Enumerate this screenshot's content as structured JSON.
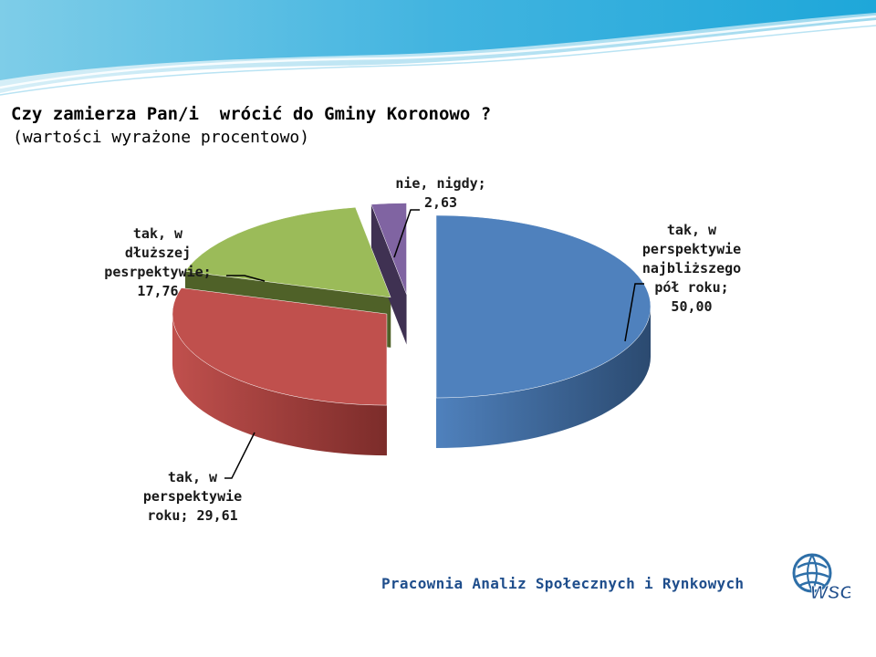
{
  "slide": {
    "title": "Czy zamierza Pan/i  wrócić do Gminy Koronowo ?",
    "subtitle": "(wartości wyrażone procentowo)",
    "footer": "Pracownia Analiz Społecznych i Rynkowych",
    "logo_text": "WSG"
  },
  "chart_data": {
    "type": "pie",
    "title": "",
    "slices": [
      {
        "label": "tak, w perspektywie najbliższego pół roku",
        "value": 50.0,
        "color": "#4f81bd",
        "dark": "#2b4a70",
        "text": "tak, w\nperspektywie\nnajbliższego\npół roku;\n50,00"
      },
      {
        "label": "tak, w perspektywie roku",
        "value": 29.61,
        "color": "#c0504d",
        "dark": "#7c2c2a",
        "text": "tak, w\nperspektywie\nroku; 29,61"
      },
      {
        "label": "tak, w dłuższej pesrpektywie",
        "value": 17.76,
        "color": "#9bbb59",
        "dark": "#4f6128",
        "text": "tak, w\ndłuższej\npesrpektywie;\n17,76"
      },
      {
        "label": "nie, nigdy",
        "value": 2.63,
        "color": "#8064a2",
        "dark": "#3f3152",
        "text": "nie, nigdy;\n2,63"
      }
    ]
  }
}
